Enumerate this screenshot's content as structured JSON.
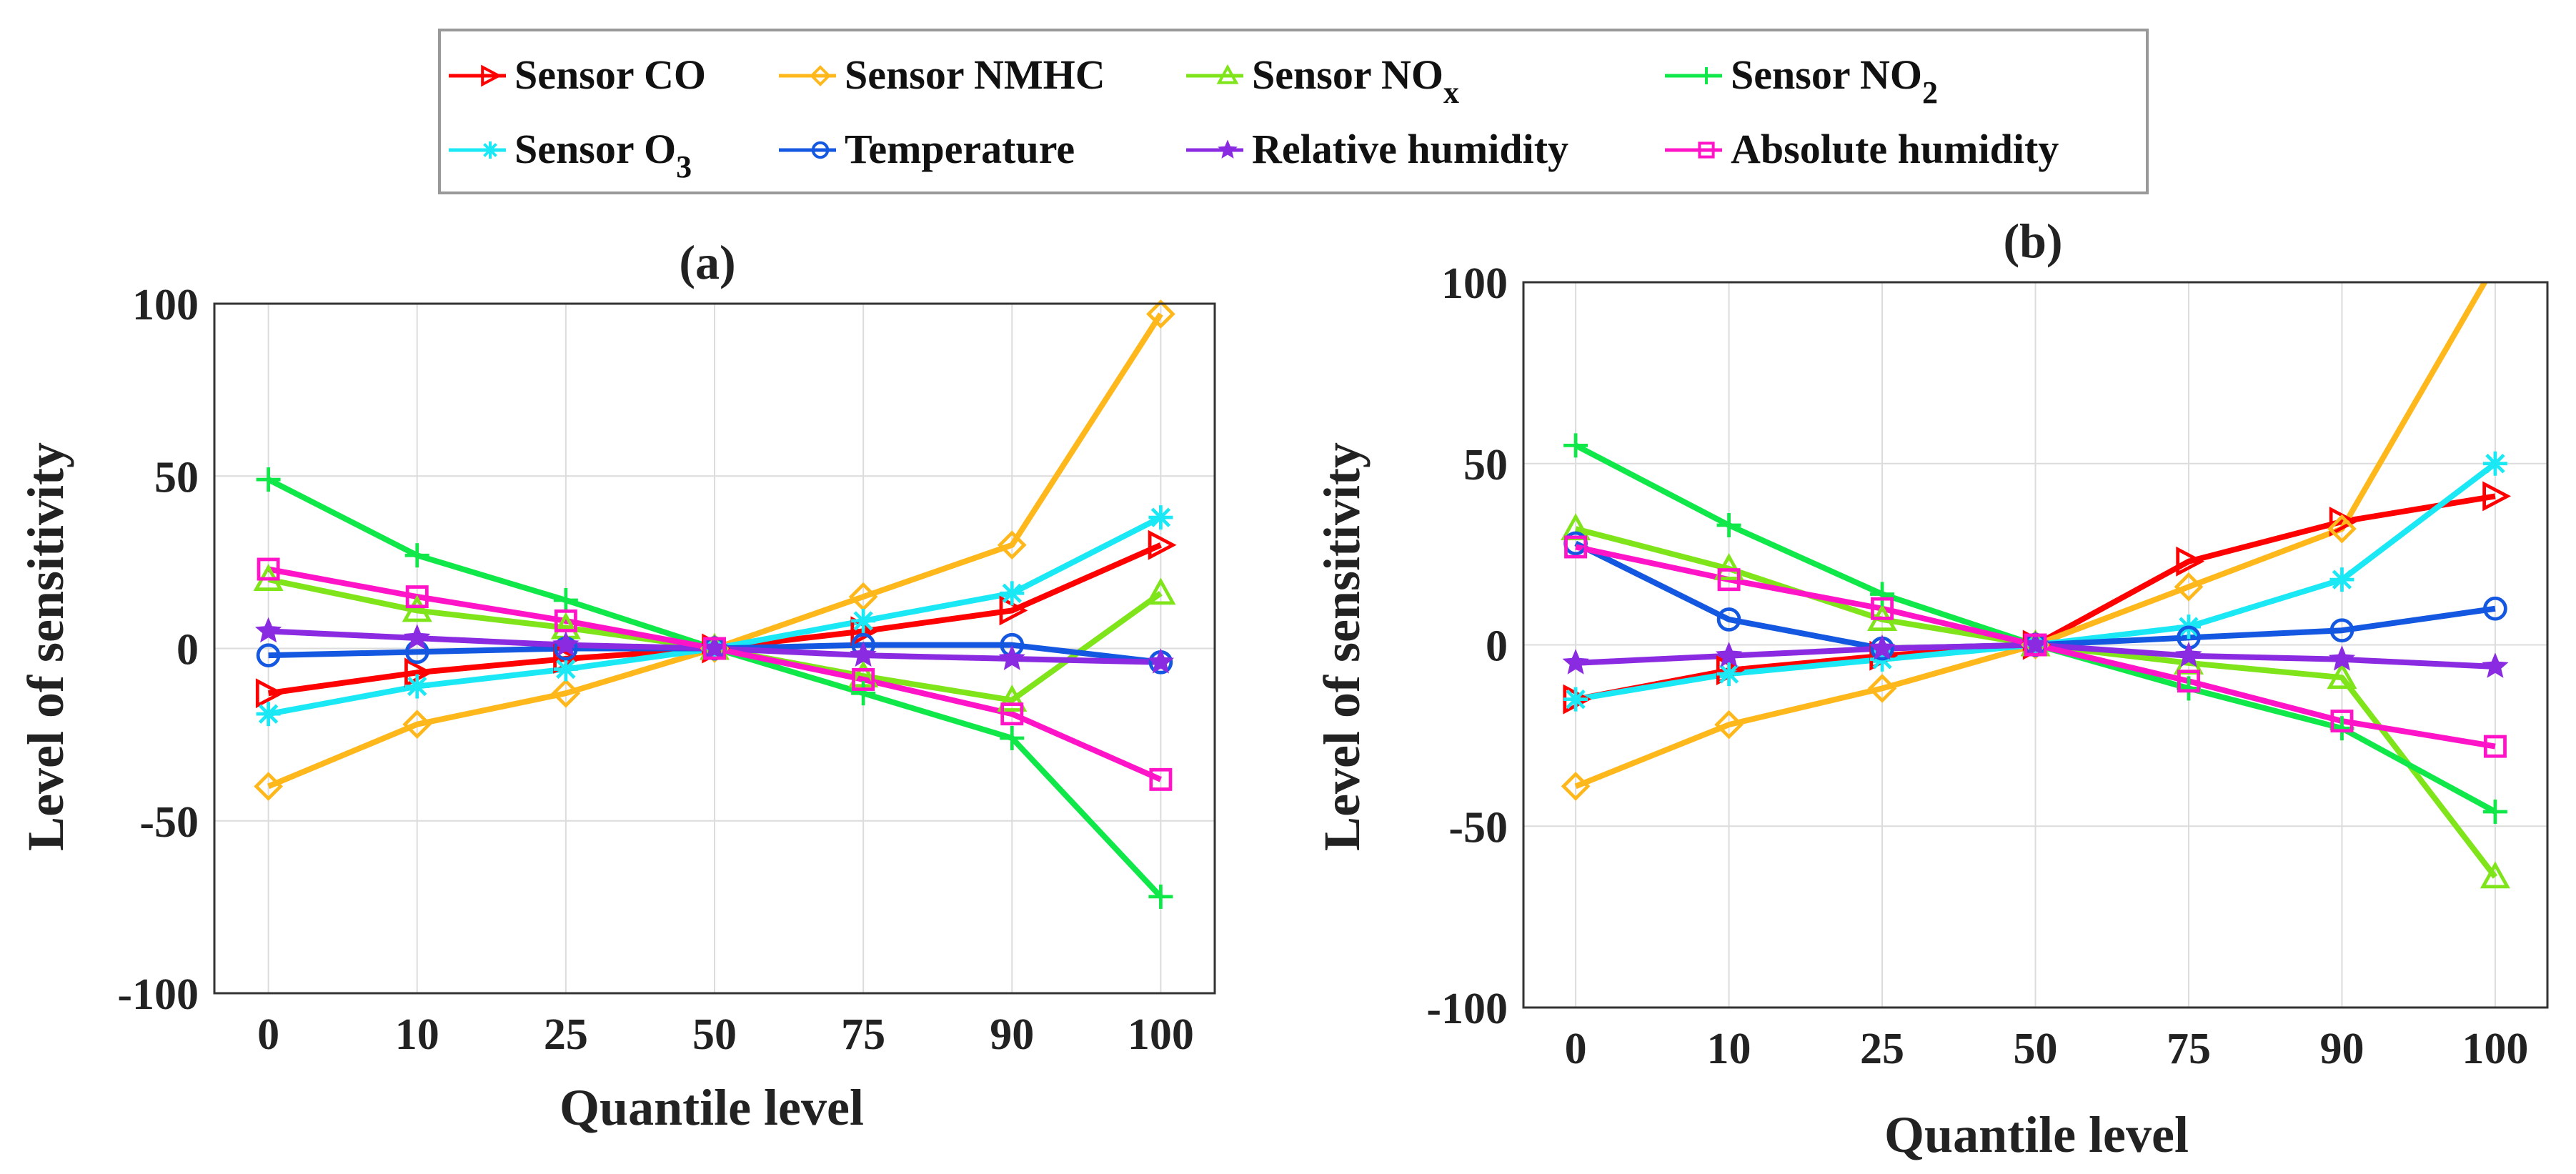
{
  "legend": [
    {
      "label": "Sensor CO",
      "sub": "",
      "color": "#ff0000",
      "marker": "triangle-right"
    },
    {
      "label": "Sensor NMHC",
      "sub": "",
      "color": "#ffb81c",
      "marker": "diamond"
    },
    {
      "label": "Sensor NO",
      "sub": "x",
      "color": "#7fe51a",
      "marker": "triangle-up"
    },
    {
      "label": "Sensor NO",
      "sub": "2",
      "color": "#10e84a",
      "marker": "plus"
    },
    {
      "label": "Sensor O",
      "sub": "3",
      "color": "#1ae8f5",
      "marker": "asterisk"
    },
    {
      "label": "Temperature",
      "sub": "",
      "color": "#1457e0",
      "marker": "circle"
    },
    {
      "label": "Relative humidity",
      "sub": "",
      "color": "#8a2be2",
      "marker": "star"
    },
    {
      "label": "Absolute humidity",
      "sub": "",
      "color": "#ff14c8",
      "marker": "square"
    }
  ],
  "chart_data": [
    {
      "type": "line",
      "title": "(a)",
      "xlabel": "Quantile level",
      "ylabel": "Level of sensitivity",
      "categories": [
        "0",
        "10",
        "25",
        "50",
        "75",
        "90",
        "100"
      ],
      "ylim": [
        -100,
        100
      ],
      "yticks": [
        "100",
        "50",
        "0",
        "-50",
        "-100"
      ],
      "series": [
        {
          "name": "Sensor CO",
          "values": [
            -13,
            -7,
            -3,
            0,
            5,
            11,
            30
          ]
        },
        {
          "name": "Sensor NMHC",
          "values": [
            -40,
            -22,
            -13,
            0,
            15,
            30,
            97
          ]
        },
        {
          "name": "Sensor NOx",
          "values": [
            20,
            11,
            6,
            0,
            -8,
            -15,
            16
          ]
        },
        {
          "name": "Sensor NO2",
          "values": [
            49,
            27,
            14,
            0,
            -13,
            -26,
            -72
          ]
        },
        {
          "name": "Sensor O3",
          "values": [
            -19,
            -11,
            -6,
            0,
            8,
            16,
            38
          ]
        },
        {
          "name": "Temperature",
          "values": [
            -2,
            -1,
            0,
            0,
            1,
            1,
            -4
          ]
        },
        {
          "name": "Relative humidity",
          "values": [
            5,
            3,
            1,
            0,
            -2,
            -3,
            -4
          ]
        },
        {
          "name": "Absolute humidity",
          "values": [
            23,
            15,
            8,
            0,
            -9,
            -19,
            -38
          ]
        }
      ]
    },
    {
      "type": "line",
      "title": "(b)",
      "xlabel": "Quantile level",
      "ylabel": "Level of sensitivity",
      "categories": [
        "0",
        "10",
        "25",
        "50",
        "75",
        "90",
        "100"
      ],
      "ylim": [
        -100,
        100
      ],
      "yticks": [
        "100",
        "50",
        "0",
        "-50",
        "-100"
      ],
      "series": [
        {
          "name": "Sensor CO",
          "values": [
            -15,
            -7,
            -3,
            0,
            23,
            34,
            41
          ]
        },
        {
          "name": "Sensor NMHC",
          "values": [
            -39,
            -22,
            -12,
            0,
            16,
            32,
            105
          ]
        },
        {
          "name": "Sensor NOx",
          "values": [
            32,
            21,
            7,
            0,
            -5,
            -9,
            -64
          ]
        },
        {
          "name": "Sensor NO2",
          "values": [
            55,
            33,
            14,
            0,
            -12,
            -23,
            -46
          ]
        },
        {
          "name": "Sensor O3",
          "values": [
            -15,
            -8,
            -4,
            0,
            5,
            18,
            50
          ]
        },
        {
          "name": "Temperature",
          "values": [
            28,
            7,
            -1,
            0,
            2,
            4,
            10
          ]
        },
        {
          "name": "Relative humidity",
          "values": [
            -5,
            -3,
            -1,
            0,
            -3,
            -4,
            -6
          ]
        },
        {
          "name": "Absolute humidity",
          "values": [
            27,
            18,
            10,
            0,
            -10,
            -21,
            -28
          ]
        }
      ]
    }
  ]
}
